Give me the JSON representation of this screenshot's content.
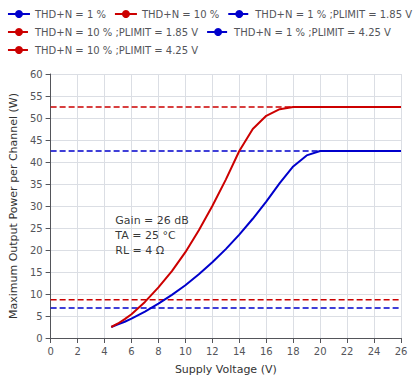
{
  "chart_data": {
    "type": "line",
    "title": "",
    "xlabel": "Supply Voltage (V)",
    "ylabel": "Maximum Output Power per Channel (W)",
    "xlim": [
      0,
      26
    ],
    "ylim": [
      0,
      60
    ],
    "xticks": [
      0,
      2,
      4,
      6,
      8,
      10,
      12,
      14,
      16,
      18,
      20,
      22,
      24,
      26
    ],
    "yticks": [
      0,
      5,
      10,
      15,
      20,
      25,
      30,
      35,
      40,
      45,
      50,
      55,
      60
    ],
    "grid": true,
    "legend": "top",
    "series": [
      {
        "name": "THD+N = 1 %",
        "color": "#0000cc",
        "line_style": "solid",
        "x": [
          4.5,
          5.0,
          5.5,
          6.0,
          7.0,
          8.0,
          9.0,
          10.0,
          11.0,
          12.0,
          13.0,
          14.0,
          15.0,
          16.0,
          17.0,
          18.0,
          19.0,
          20.0,
          21.0,
          26.0
        ],
        "values": [
          2.5,
          3.1,
          3.7,
          4.4,
          6.0,
          7.8,
          9.8,
          12.0,
          14.5,
          17.2,
          20.2,
          23.5,
          27.1,
          31.0,
          35.2,
          39.0,
          41.5,
          42.5,
          42.5,
          42.5
        ]
      },
      {
        "name": "THD+N = 10 %",
        "color": "#cc0000",
        "line_style": "solid",
        "x": [
          4.5,
          5.0,
          5.5,
          6.0,
          7.0,
          8.0,
          9.0,
          10.0,
          11.0,
          12.0,
          13.0,
          14.0,
          15.0,
          16.0,
          17.0,
          18.0,
          18.5,
          19.0,
          26.0
        ],
        "values": [
          2.5,
          3.3,
          4.3,
          5.4,
          8.2,
          11.5,
          15.2,
          19.5,
          24.5,
          30.0,
          36.0,
          42.5,
          47.5,
          50.5,
          52.0,
          52.5,
          52.5,
          52.5,
          52.5
        ]
      },
      {
        "name": "THD+N = 1 % ;PLIMIT = 1.85 V",
        "color": "#0000cc",
        "line_style": "dashed",
        "x": [
          0,
          26
        ],
        "values": [
          6.8,
          6.8
        ]
      },
      {
        "name": "THD+N = 10 % ;PLIMIT = 1.85 V",
        "color": "#cc0000",
        "line_style": "dashed",
        "x": [
          0,
          26
        ],
        "values": [
          8.7,
          8.7
        ]
      },
      {
        "name": "THD+N = 1 % ;PLIMIT = 4.25 V",
        "color": "#0000cc",
        "line_style": "dashed",
        "x": [
          0,
          26
        ],
        "values": [
          42.5,
          42.5
        ]
      },
      {
        "name": "THD+N = 10 % ;PLIMIT = 4.25 V",
        "color": "#cc0000",
        "line_style": "dashed",
        "x": [
          0,
          26
        ],
        "values": [
          52.5,
          52.5
        ]
      }
    ],
    "annotations": [
      {
        "text": "Gain = 26 dB\nTA = 25 °C\nRL = 4 Ω",
        "x": 4.8,
        "y": 28.5
      }
    ]
  }
}
